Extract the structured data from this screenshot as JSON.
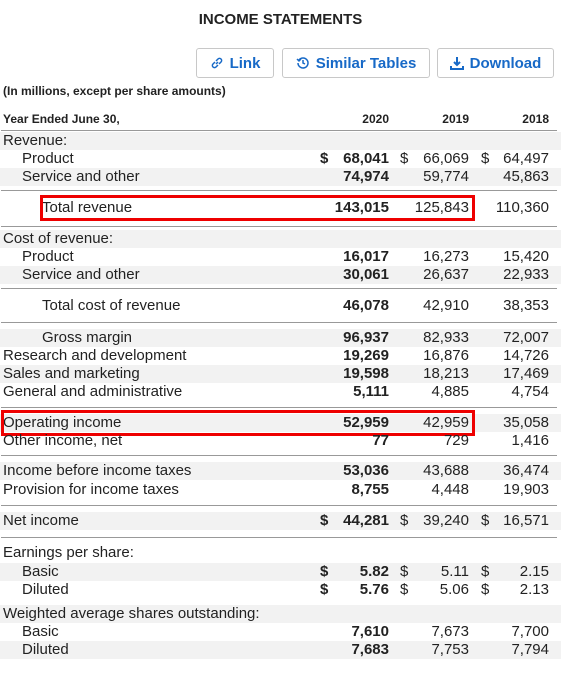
{
  "header": {
    "title": "INCOME STATEMENTS",
    "buttons": [
      "Link",
      "Similar Tables",
      "Download"
    ],
    "note": "(In millions, except per share amounts)"
  },
  "table": {
    "columns": [
      "Year Ended June 30,",
      "2020",
      "2019",
      "2018"
    ],
    "rows": [
      {
        "label": "Revenue:",
        "indent": 0,
        "cells": []
      },
      {
        "label": "Product",
        "indent": 1,
        "cells": [
          {
            "symbol": "$",
            "value": "68,041"
          },
          {
            "symbol": "$",
            "value": "66,069"
          },
          {
            "symbol": "$",
            "value": "64,497"
          }
        ]
      },
      {
        "label": "Service and other",
        "indent": 1,
        "cells": [
          {
            "value": "74,974"
          },
          {
            "value": "59,774"
          },
          {
            "value": "45,863"
          }
        ]
      },
      {
        "label": "Total revenue",
        "indent": 2,
        "highlight": true,
        "cells": [
          {
            "value": "143,015"
          },
          {
            "value": "125,843"
          },
          {
            "value": "110,360"
          }
        ]
      },
      {
        "label": "Cost of revenue:",
        "indent": 0,
        "cells": []
      },
      {
        "label": "Product",
        "indent": 1,
        "cells": [
          {
            "value": "16,017"
          },
          {
            "value": "16,273"
          },
          {
            "value": "15,420"
          }
        ]
      },
      {
        "label": "Service and other",
        "indent": 1,
        "cells": [
          {
            "value": "30,061"
          },
          {
            "value": "26,637"
          },
          {
            "value": "22,933"
          }
        ]
      },
      {
        "label": "Total cost of revenue",
        "indent": 2,
        "cells": [
          {
            "value": "46,078"
          },
          {
            "value": "42,910"
          },
          {
            "value": "38,353"
          }
        ]
      },
      {
        "label": "Gross margin",
        "indent": 2,
        "cells": [
          {
            "value": "96,937"
          },
          {
            "value": "82,933"
          },
          {
            "value": "72,007"
          }
        ]
      },
      {
        "label": "Research and development",
        "indent": 0,
        "cells": [
          {
            "value": "19,269"
          },
          {
            "value": "16,876"
          },
          {
            "value": "14,726"
          }
        ]
      },
      {
        "label": "Sales and marketing",
        "indent": 0,
        "cells": [
          {
            "value": "19,598"
          },
          {
            "value": "18,213"
          },
          {
            "value": "17,469"
          }
        ]
      },
      {
        "label": "General and administrative",
        "indent": 0,
        "cells": [
          {
            "value": "5,111"
          },
          {
            "value": "4,885"
          },
          {
            "value": "4,754"
          }
        ]
      },
      {
        "label": "Operating income",
        "indent": 0,
        "highlight": true,
        "cells": [
          {
            "value": "52,959"
          },
          {
            "value": "42,959"
          },
          {
            "value": "35,058"
          }
        ]
      },
      {
        "label": "Other income, net",
        "indent": 0,
        "cells": [
          {
            "value": "77"
          },
          {
            "value": "729"
          },
          {
            "value": "1,416"
          }
        ]
      },
      {
        "label": "Income before income taxes",
        "indent": 0,
        "cells": [
          {
            "value": "53,036"
          },
          {
            "value": "43,688"
          },
          {
            "value": "36,474"
          }
        ]
      },
      {
        "label": "Provision for income taxes",
        "indent": 0,
        "cells": [
          {
            "value": "8,755"
          },
          {
            "value": "4,448"
          },
          {
            "value": "19,903"
          }
        ]
      },
      {
        "label": "Net income",
        "indent": 0,
        "cells": [
          {
            "symbol": "$",
            "value": "44,281"
          },
          {
            "symbol": "$",
            "value": "39,240"
          },
          {
            "symbol": "$",
            "value": "16,571"
          }
        ]
      },
      {
        "label": "Earnings per share:",
        "indent": 0,
        "cells": []
      },
      {
        "label": "Basic",
        "indent": 1,
        "cells": [
          {
            "symbol": "$",
            "value": "5.82"
          },
          {
            "symbol": "$",
            "value": "5.11"
          },
          {
            "symbol": "$",
            "value": "2.15"
          }
        ]
      },
      {
        "label": "Diluted",
        "indent": 1,
        "cells": [
          {
            "symbol": "$",
            "value": "5.76"
          },
          {
            "symbol": "$",
            "value": "5.06"
          },
          {
            "symbol": "$",
            "value": "2.13"
          }
        ]
      },
      {
        "label": "Weighted average shares outstanding:",
        "indent": 0,
        "cells": []
      },
      {
        "label": "Basic",
        "indent": 1,
        "cells": [
          {
            "value": "7,610"
          },
          {
            "value": "7,673"
          },
          {
            "value": "7,700"
          }
        ]
      },
      {
        "label": "Diluted",
        "indent": 1,
        "cells": [
          {
            "value": "7,683"
          },
          {
            "value": "7,753"
          },
          {
            "value": "7,794"
          }
        ]
      }
    ]
  }
}
